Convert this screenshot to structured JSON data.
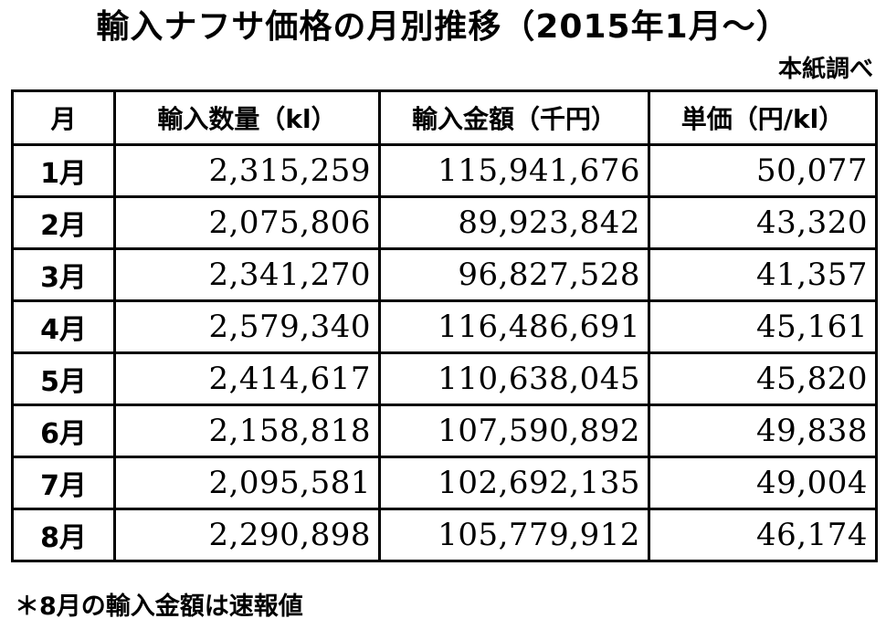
{
  "chart_data": {
    "type": "table",
    "title": "輸入ナフサ価格の月別推移（2015年1月～）",
    "source": "本紙調べ",
    "columns": [
      "月",
      "輸入数量（kl）",
      "輸入金額（千円）",
      "単価（円/kl）"
    ],
    "rows": [
      [
        "1月",
        "2,315,259",
        "115,941,676",
        "50,077"
      ],
      [
        "2月",
        "2,075,806",
        "89,923,842",
        "43,320"
      ],
      [
        "3月",
        "2,341,270",
        "96,827,528",
        "41,357"
      ],
      [
        "4月",
        "2,579,340",
        "116,486,691",
        "45,161"
      ],
      [
        "5月",
        "2,414,617",
        "110,638,045",
        "45,820"
      ],
      [
        "6月",
        "2,158,818",
        "107,590,892",
        "49,838"
      ],
      [
        "7月",
        "2,095,581",
        "102,692,135",
        "49,004"
      ],
      [
        "8月",
        "2,290,898",
        "105,779,912",
        "46,174"
      ]
    ],
    "note": "＊8月の輸入金額は速報値"
  }
}
